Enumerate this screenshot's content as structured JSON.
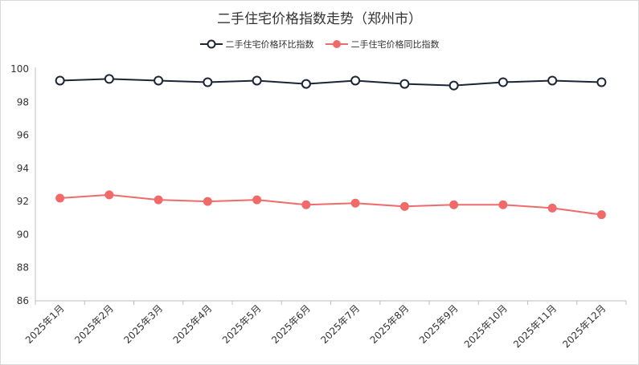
{
  "chart_data": {
    "type": "line",
    "title": "二手住宅价格指数走势（郑州市）",
    "categories": [
      "2025年1月",
      "2025年2月",
      "2025年3月",
      "2025年4月",
      "2025年5月",
      "2025年6月",
      "2025年7月",
      "2025年8月",
      "2025年9月",
      "2025年10月",
      "2025年11月",
      "2025年12月"
    ],
    "series": [
      {
        "name": "二手住宅价格环比指数",
        "color": "#1b2535",
        "marker": "hollow-circle",
        "values": [
          99.3,
          99.4,
          99.3,
          99.2,
          99.3,
          99.1,
          99.3,
          99.1,
          99.0,
          99.2,
          99.3,
          99.2
        ]
      },
      {
        "name": "二手住宅价格同比指数",
        "color": "#f06a6a",
        "marker": "filled-circle",
        "values": [
          92.2,
          92.4,
          92.1,
          92.0,
          92.1,
          91.8,
          91.9,
          91.7,
          91.8,
          91.8,
          91.6,
          91.2
        ]
      }
    ],
    "ylim": [
      86,
      100
    ],
    "yticks": [
      86,
      88,
      90,
      92,
      94,
      96,
      98,
      100
    ],
    "grid": false,
    "legend_position": "top-center"
  }
}
